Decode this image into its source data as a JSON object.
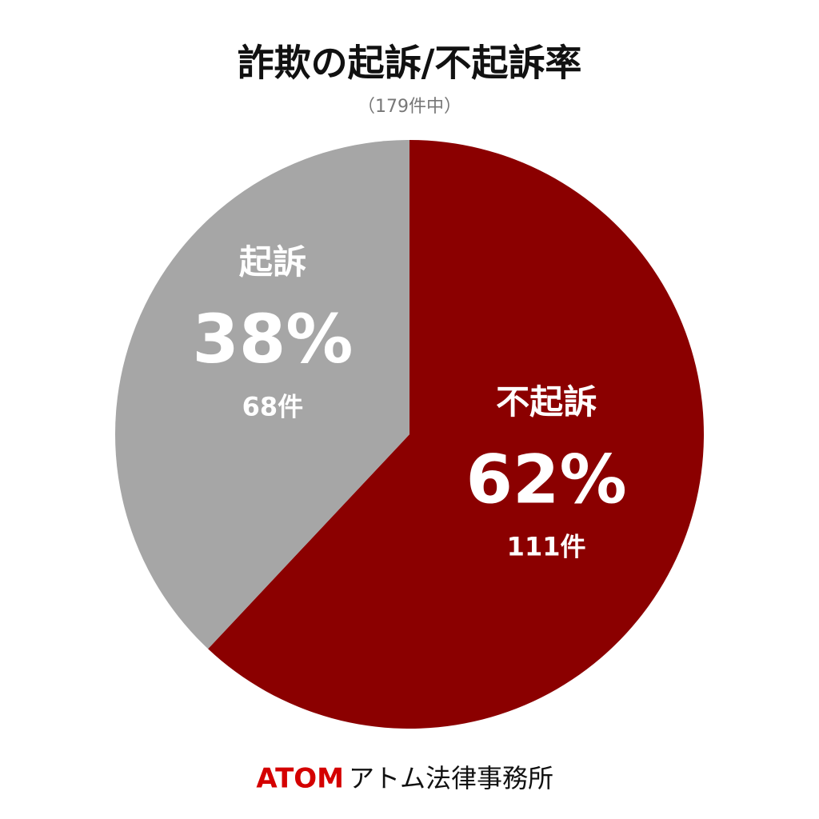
{
  "chart_data": {
    "type": "pie",
    "title": "詐欺の起訴/不起訴率",
    "subtitle": "（179件中）",
    "categories": [
      "不起訴",
      "起訴"
    ],
    "values": [
      62,
      38
    ],
    "value_labels": [
      "62%",
      "38%"
    ],
    "count_labels": [
      "111件",
      "68件"
    ],
    "colors": [
      "#8b0000",
      "#a6a6a6"
    ]
  },
  "footer": {
    "brand": "ATOM",
    "name": "アトム法律事務所"
  }
}
